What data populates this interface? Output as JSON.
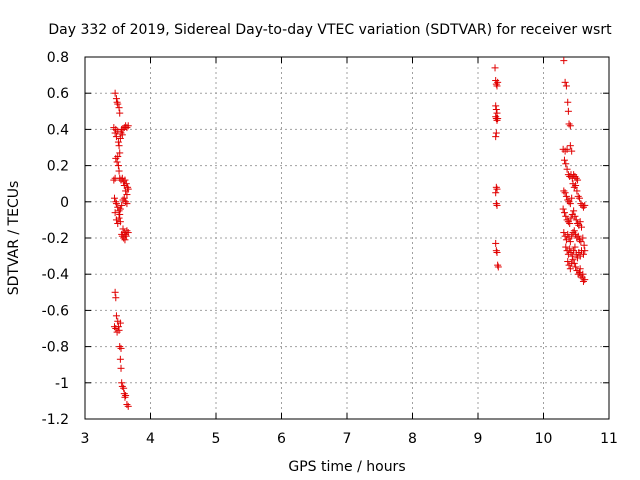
{
  "chart_data": {
    "type": "scatter",
    "title": "Day 332 of 2019, Sidereal Day-to-day VTEC variation (SDTVAR) for receiver wsrt",
    "xlabel": "GPS time / hours",
    "ylabel": "SDTVAR / TECUs",
    "xlim": [
      3,
      11
    ],
    "ylim": [
      -1.2,
      0.8
    ],
    "xticks": [
      "3",
      "4",
      "5",
      "6",
      "7",
      "8",
      "9",
      "10",
      "11"
    ],
    "yticks": [
      "0.8",
      "0.6",
      "0.4",
      "0.2",
      "0",
      "-0.2",
      "-0.4",
      "-0.6",
      "-0.8",
      "-1",
      "-1.2"
    ],
    "grid": true,
    "marker": "+",
    "color": "#e00000",
    "series": [
      {
        "name": "SDTVAR",
        "points": [
          [
            3.46,
            0.6
          ],
          [
            3.48,
            0.57
          ],
          [
            3.49,
            0.55
          ],
          [
            3.5,
            0.54
          ],
          [
            3.52,
            0.52
          ],
          [
            3.53,
            0.49
          ],
          [
            3.44,
            0.41
          ],
          [
            3.46,
            0.38
          ],
          [
            3.47,
            0.4
          ],
          [
            3.48,
            0.36
          ],
          [
            3.5,
            0.39
          ],
          [
            3.51,
            0.33
          ],
          [
            3.52,
            0.31
          ],
          [
            3.53,
            0.27
          ],
          [
            3.55,
            0.38
          ],
          [
            3.56,
            0.4
          ],
          [
            3.58,
            0.4
          ],
          [
            3.6,
            0.41
          ],
          [
            3.62,
            0.42
          ],
          [
            3.64,
            0.41
          ],
          [
            3.66,
            0.42
          ],
          [
            3.57,
            0.37
          ],
          [
            3.54,
            0.35
          ],
          [
            3.47,
            0.24
          ],
          [
            3.49,
            0.22
          ],
          [
            3.5,
            0.25
          ],
          [
            3.51,
            0.2
          ],
          [
            3.52,
            0.17
          ],
          [
            3.53,
            0.13
          ],
          [
            3.44,
            0.12
          ],
          [
            3.46,
            0.13
          ],
          [
            3.55,
            0.12
          ],
          [
            3.57,
            0.13
          ],
          [
            3.59,
            0.11
          ],
          [
            3.6,
            0.09
          ],
          [
            3.61,
            0.12
          ],
          [
            3.63,
            0.1
          ],
          [
            3.65,
            0.08
          ],
          [
            3.62,
            0.06
          ],
          [
            3.64,
            0.04
          ],
          [
            3.66,
            0.07
          ],
          [
            3.45,
            0.02
          ],
          [
            3.47,
            0.0
          ],
          [
            3.48,
            -0.01
          ],
          [
            3.5,
            -0.03
          ],
          [
            3.52,
            -0.05
          ],
          [
            3.53,
            -0.07
          ],
          [
            3.54,
            -0.04
          ],
          [
            3.56,
            -0.02
          ],
          [
            3.58,
            0.01
          ],
          [
            3.6,
            0.02
          ],
          [
            3.62,
            0.0
          ],
          [
            3.64,
            -0.01
          ],
          [
            3.46,
            -0.06
          ],
          [
            3.48,
            -0.1
          ],
          [
            3.5,
            -0.12
          ],
          [
            3.52,
            -0.09
          ],
          [
            3.54,
            -0.11
          ],
          [
            3.58,
            -0.15
          ],
          [
            3.6,
            -0.17
          ],
          [
            3.62,
            -0.18
          ],
          [
            3.64,
            -0.16
          ],
          [
            3.66,
            -0.17
          ],
          [
            3.57,
            -0.19
          ],
          [
            3.59,
            -0.2
          ],
          [
            3.61,
            -0.21
          ],
          [
            3.63,
            -0.19
          ],
          [
            3.56,
            -0.18
          ],
          [
            3.46,
            -0.5
          ],
          [
            3.47,
            -0.53
          ],
          [
            3.48,
            -0.63
          ],
          [
            3.5,
            -0.66
          ],
          [
            3.51,
            -0.69
          ],
          [
            3.47,
            -0.7
          ],
          [
            3.49,
            -0.72
          ],
          [
            3.52,
            -0.71
          ],
          [
            3.54,
            -0.67
          ],
          [
            3.45,
            -0.69
          ],
          [
            3.53,
            -0.8
          ],
          [
            3.55,
            -0.81
          ],
          [
            3.54,
            -0.87
          ],
          [
            3.55,
            -0.92
          ],
          [
            3.56,
            -1.0
          ],
          [
            3.57,
            -1.02
          ],
          [
            3.59,
            -1.03
          ],
          [
            3.6,
            -1.06
          ],
          [
            3.61,
            -1.08
          ],
          [
            3.62,
            -1.07
          ],
          [
            3.64,
            -1.12
          ],
          [
            3.66,
            -1.13
          ],
          [
            9.26,
            0.74
          ],
          [
            9.27,
            0.67
          ],
          [
            9.28,
            0.65
          ],
          [
            9.3,
            0.66
          ],
          [
            9.29,
            0.64
          ],
          [
            9.27,
            0.53
          ],
          [
            9.28,
            0.51
          ],
          [
            9.29,
            0.49
          ],
          [
            9.27,
            0.47
          ],
          [
            9.28,
            0.46
          ],
          [
            9.3,
            0.46
          ],
          [
            9.29,
            0.45
          ],
          [
            9.28,
            0.38
          ],
          [
            9.27,
            0.36
          ],
          [
            9.28,
            0.08
          ],
          [
            9.29,
            0.07
          ],
          [
            9.27,
            0.05
          ],
          [
            9.28,
            -0.01
          ],
          [
            9.29,
            -0.02
          ],
          [
            9.27,
            -0.23
          ],
          [
            9.28,
            -0.27
          ],
          [
            9.29,
            -0.28
          ],
          [
            9.3,
            -0.35
          ],
          [
            9.31,
            -0.36
          ],
          [
            10.31,
            0.78
          ],
          [
            10.33,
            0.66
          ],
          [
            10.35,
            0.64
          ],
          [
            10.37,
            0.55
          ],
          [
            10.38,
            0.5
          ],
          [
            10.39,
            0.43
          ],
          [
            10.41,
            0.42
          ],
          [
            10.3,
            0.29
          ],
          [
            10.33,
            0.28
          ],
          [
            10.36,
            0.29
          ],
          [
            10.41,
            0.31
          ],
          [
            10.43,
            0.28
          ],
          [
            10.32,
            0.23
          ],
          [
            10.34,
            0.21
          ],
          [
            10.36,
            0.18
          ],
          [
            10.38,
            0.15
          ],
          [
            10.4,
            0.14
          ],
          [
            10.42,
            0.15
          ],
          [
            10.44,
            0.13
          ],
          [
            10.46,
            0.15
          ],
          [
            10.48,
            0.14
          ],
          [
            10.5,
            0.13
          ],
          [
            10.52,
            0.12
          ],
          [
            10.45,
            0.1
          ],
          [
            10.47,
            0.08
          ],
          [
            10.49,
            0.09
          ],
          [
            10.51,
            0.06
          ],
          [
            10.31,
            0.06
          ],
          [
            10.33,
            0.05
          ],
          [
            10.35,
            0.03
          ],
          [
            10.37,
            0.01
          ],
          [
            10.39,
            0.0
          ],
          [
            10.41,
            -0.01
          ],
          [
            10.43,
            0.02
          ],
          [
            10.53,
            0.03
          ],
          [
            10.55,
            0.02
          ],
          [
            10.57,
            -0.01
          ],
          [
            10.59,
            -0.02
          ],
          [
            10.61,
            -0.03
          ],
          [
            10.63,
            -0.02
          ],
          [
            10.3,
            -0.04
          ],
          [
            10.32,
            -0.06
          ],
          [
            10.34,
            -0.08
          ],
          [
            10.36,
            -0.1
          ],
          [
            10.38,
            -0.11
          ],
          [
            10.4,
            -0.12
          ],
          [
            10.42,
            -0.09
          ],
          [
            10.44,
            -0.07
          ],
          [
            10.46,
            -0.05
          ],
          [
            10.48,
            -0.08
          ],
          [
            10.5,
            -0.1
          ],
          [
            10.52,
            -0.12
          ],
          [
            10.54,
            -0.13
          ],
          [
            10.56,
            -0.11
          ],
          [
            10.58,
            -0.14
          ],
          [
            10.31,
            -0.17
          ],
          [
            10.33,
            -0.19
          ],
          [
            10.35,
            -0.21
          ],
          [
            10.37,
            -0.18
          ],
          [
            10.39,
            -0.2
          ],
          [
            10.41,
            -0.22
          ],
          [
            10.43,
            -0.19
          ],
          [
            10.45,
            -0.17
          ],
          [
            10.47,
            -0.16
          ],
          [
            10.49,
            -0.18
          ],
          [
            10.51,
            -0.2
          ],
          [
            10.53,
            -0.19
          ],
          [
            10.55,
            -0.21
          ],
          [
            10.57,
            -0.22
          ],
          [
            10.6,
            -0.2
          ],
          [
            10.62,
            -0.24
          ],
          [
            10.34,
            -0.25
          ],
          [
            10.36,
            -0.27
          ],
          [
            10.38,
            -0.29
          ],
          [
            10.4,
            -0.26
          ],
          [
            10.42,
            -0.28
          ],
          [
            10.44,
            -0.3
          ],
          [
            10.46,
            -0.27
          ],
          [
            10.48,
            -0.25
          ],
          [
            10.5,
            -0.29
          ],
          [
            10.52,
            -0.31
          ],
          [
            10.54,
            -0.28
          ],
          [
            10.56,
            -0.3
          ],
          [
            10.58,
            -0.27
          ],
          [
            10.61,
            -0.29
          ],
          [
            10.63,
            -0.27
          ],
          [
            10.37,
            -0.33
          ],
          [
            10.39,
            -0.35
          ],
          [
            10.41,
            -0.37
          ],
          [
            10.43,
            -0.34
          ],
          [
            10.45,
            -0.32
          ],
          [
            10.47,
            -0.34
          ],
          [
            10.49,
            -0.36
          ],
          [
            10.51,
            -0.38
          ],
          [
            10.53,
            -0.4
          ],
          [
            10.55,
            -0.39
          ],
          [
            10.57,
            -0.41
          ],
          [
            10.59,
            -0.42
          ],
          [
            10.61,
            -0.44
          ],
          [
            10.63,
            -0.43
          ],
          [
            10.6,
            -0.4
          ],
          [
            10.56,
            -0.37
          ]
        ]
      }
    ]
  }
}
